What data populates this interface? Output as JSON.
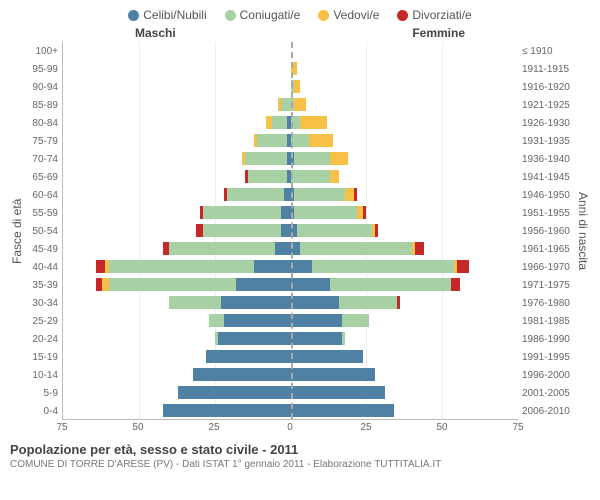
{
  "legend": [
    {
      "label": "Celibi/Nubili",
      "color": "#4f81a5"
    },
    {
      "label": "Coniugati/e",
      "color": "#a8d0a5"
    },
    {
      "label": "Vedovi/e",
      "color": "#f7c046"
    },
    {
      "label": "Divorziati/e",
      "color": "#c42828"
    }
  ],
  "gender": {
    "left": "Maschi",
    "right": "Femmine"
  },
  "axes": {
    "y_left_label": "Fasce di età",
    "y_right_label": "Anni di nascita",
    "x_max": 75,
    "x_ticks_left": [
      75,
      50,
      25,
      0
    ],
    "x_ticks_right": [
      25,
      50,
      75
    ],
    "grid_color": "#eeeeee",
    "centerline_color": "#aaaaaa"
  },
  "rows": [
    {
      "age": "100+",
      "birth": "≤ 1910",
      "m": [
        0,
        0,
        0,
        0
      ],
      "f": [
        0,
        0,
        0,
        0
      ]
    },
    {
      "age": "95-99",
      "birth": "1911-1915",
      "m": [
        0,
        0,
        0,
        0
      ],
      "f": [
        0,
        0,
        2,
        0
      ]
    },
    {
      "age": "90-94",
      "birth": "1916-1920",
      "m": [
        0,
        0,
        0,
        0
      ],
      "f": [
        0,
        1,
        2,
        0
      ]
    },
    {
      "age": "85-89",
      "birth": "1921-1925",
      "m": [
        0,
        3,
        1,
        0
      ],
      "f": [
        0,
        1,
        4,
        0
      ]
    },
    {
      "age": "80-84",
      "birth": "1926-1930",
      "m": [
        1,
        5,
        2,
        0
      ],
      "f": [
        0,
        3,
        9,
        0
      ]
    },
    {
      "age": "75-79",
      "birth": "1931-1935",
      "m": [
        1,
        10,
        1,
        0
      ],
      "f": [
        0,
        6,
        8,
        0
      ]
    },
    {
      "age": "70-74",
      "birth": "1936-1940",
      "m": [
        1,
        14,
        1,
        0
      ],
      "f": [
        1,
        12,
        6,
        0
      ]
    },
    {
      "age": "65-69",
      "birth": "1941-1945",
      "m": [
        1,
        13,
        0,
        1
      ],
      "f": [
        0,
        13,
        3,
        0
      ]
    },
    {
      "age": "60-64",
      "birth": "1946-1950",
      "m": [
        2,
        19,
        0,
        1
      ],
      "f": [
        1,
        17,
        3,
        1
      ]
    },
    {
      "age": "55-59",
      "birth": "1951-1955",
      "m": [
        3,
        26,
        0,
        1
      ],
      "f": [
        1,
        21,
        2,
        1
      ]
    },
    {
      "age": "50-54",
      "birth": "1956-1960",
      "m": [
        3,
        26,
        0,
        2
      ],
      "f": [
        2,
        25,
        1,
        1
      ]
    },
    {
      "age": "45-49",
      "birth": "1961-1965",
      "m": [
        5,
        35,
        0,
        2
      ],
      "f": [
        3,
        37,
        1,
        3
      ]
    },
    {
      "age": "40-44",
      "birth": "1966-1970",
      "m": [
        12,
        48,
        1,
        3
      ],
      "f": [
        7,
        47,
        1,
        4
      ]
    },
    {
      "age": "35-39",
      "birth": "1971-1975",
      "m": [
        18,
        42,
        2,
        2
      ],
      "f": [
        13,
        40,
        0,
        3
      ]
    },
    {
      "age": "30-34",
      "birth": "1976-1980",
      "m": [
        23,
        17,
        0,
        0
      ],
      "f": [
        16,
        19,
        0,
        1
      ]
    },
    {
      "age": "25-29",
      "birth": "1981-1985",
      "m": [
        22,
        5,
        0,
        0
      ],
      "f": [
        17,
        9,
        0,
        0
      ]
    },
    {
      "age": "20-24",
      "birth": "1986-1990",
      "m": [
        24,
        1,
        0,
        0
      ],
      "f": [
        17,
        1,
        0,
        0
      ]
    },
    {
      "age": "15-19",
      "birth": "1991-1995",
      "m": [
        28,
        0,
        0,
        0
      ],
      "f": [
        24,
        0,
        0,
        0
      ]
    },
    {
      "age": "10-14",
      "birth": "1996-2000",
      "m": [
        32,
        0,
        0,
        0
      ],
      "f": [
        28,
        0,
        0,
        0
      ]
    },
    {
      "age": "5-9",
      "birth": "2001-2005",
      "m": [
        37,
        0,
        0,
        0
      ],
      "f": [
        31,
        0,
        0,
        0
      ]
    },
    {
      "age": "0-4",
      "birth": "2006-2010",
      "m": [
        42,
        0,
        0,
        0
      ],
      "f": [
        34,
        0,
        0,
        0
      ]
    }
  ],
  "footer": {
    "title": "Popolazione per età, sesso e stato civile - 2011",
    "subtitle": "COMUNE DI TORRE D'ARESE (PV) - Dati ISTAT 1° gennaio 2011 - Elaborazione TUTTITALIA.IT"
  },
  "style": {
    "background": "#ffffff",
    "tick_fontsize": 10,
    "label_fontsize": 12,
    "title_fontsize": 13
  }
}
